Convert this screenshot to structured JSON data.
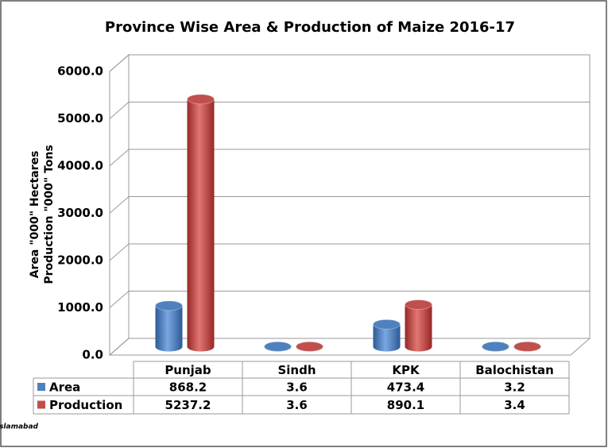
{
  "chart_data": {
    "type": "bar",
    "title": "Province Wise Area & Production of Maize 2016-17",
    "ylabel": [
      "Area \"000\" Hectares",
      "Production \"000\" Tons"
    ],
    "categories": [
      "Punjab",
      "Sindh",
      "KPK",
      "Balochistan"
    ],
    "series": [
      {
        "name": "Area",
        "color": "#4f81bd",
        "values": [
          868.2,
          3.6,
          473.4,
          3.2
        ]
      },
      {
        "name": "Production",
        "color": "#c0504d",
        "values": [
          5237.2,
          3.6,
          890.1,
          3.4
        ]
      }
    ],
    "ylim": [
      0,
      6000
    ],
    "yticks": [
      {
        "value": 0,
        "label": "0.0"
      },
      {
        "value": 1000,
        "label": "1000.0"
      },
      {
        "value": 2000,
        "label": "2000.0"
      },
      {
        "value": 3000,
        "label": "3000.0"
      },
      {
        "value": 4000,
        "label": "4000.0"
      },
      {
        "value": 5000,
        "label": "5000.0"
      },
      {
        "value": 6000,
        "label": "6000.0"
      }
    ],
    "grid": true,
    "source": "Source: Ministry of National Food Security and Research Islamabad"
  }
}
